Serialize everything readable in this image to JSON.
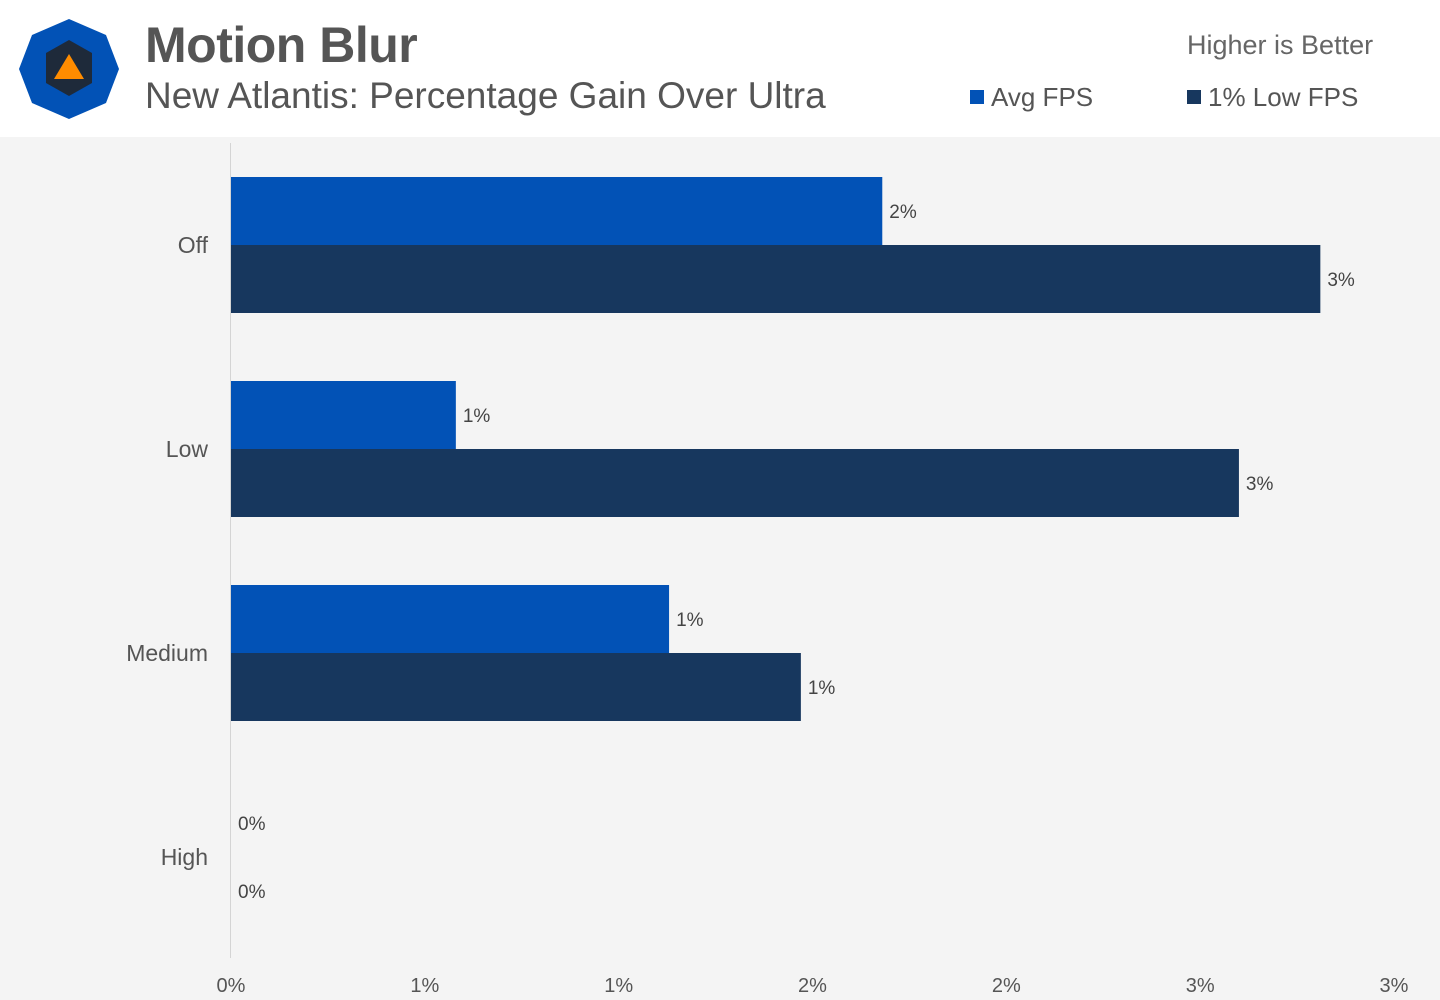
{
  "header": {
    "title": "Motion Blur",
    "subtitle": "New Atlantis: Percentage Gain Over Ultra",
    "note": "Higher is Better"
  },
  "colors": {
    "avg": "#0252b6",
    "low": "#17375e",
    "logo_outer": "#0252b6",
    "logo_inner": "#1e2a3a",
    "logo_accent": "#ff8c00"
  },
  "legend": [
    {
      "label": "Avg FPS",
      "color": "#0252b6"
    },
    {
      "label": "1% Low FPS",
      "color": "#17375e"
    }
  ],
  "chart_data": {
    "type": "bar",
    "orientation": "horizontal",
    "categories": [
      "Off",
      "Low",
      "Medium",
      "High"
    ],
    "series": [
      {
        "name": "Avg FPS",
        "values": [
          1.68,
          0.58,
          1.13,
          0
        ],
        "labels": [
          "2%",
          "1%",
          "1%",
          "0%"
        ]
      },
      {
        "name": "1% Low FPS",
        "values": [
          2.81,
          2.6,
          1.47,
          0
        ],
        "labels": [
          "3%",
          "3%",
          "1%",
          "0%"
        ]
      }
    ],
    "xlim": [
      0,
      3.0
    ],
    "xticks": [
      0,
      0.5,
      1.0,
      1.5,
      2.0,
      2.5,
      3.0
    ],
    "xtick_labels": [
      "0%",
      "1%",
      "1%",
      "2%",
      "2%",
      "3%",
      "3%"
    ],
    "legend_position": "top-right",
    "grid": false
  }
}
